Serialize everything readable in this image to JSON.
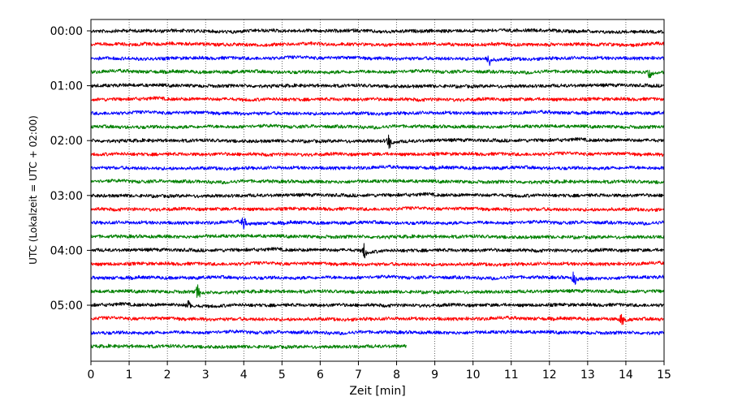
{
  "chart_data": {
    "type": "line",
    "title": "",
    "xlabel": "Zeit  [min]",
    "ylabel": "UTC (Lokalzeit = UTC + 02:00)",
    "xlim": [
      0,
      15
    ],
    "x_ticks": [
      0,
      1,
      2,
      3,
      4,
      5,
      6,
      7,
      8,
      9,
      10,
      11,
      12,
      13,
      14,
      15
    ],
    "x_tick_labels": [
      "0",
      "1",
      "2",
      "3",
      "4",
      "5",
      "6",
      "7",
      "8",
      "9",
      "10",
      "11",
      "12",
      "13",
      "14",
      "15"
    ],
    "y_tick_labels": [
      "00:00",
      "01:00",
      "02:00",
      "03:00",
      "04:00",
      "05:00"
    ],
    "traces_per_hour": 4,
    "trace_count": 24,
    "minutes_per_trace": 15,
    "trace_colors": [
      "#000000",
      "#ff0000",
      "#0000ff",
      "#008000"
    ],
    "last_trace_end_min": 8.25,
    "vertical_grid": "dotted",
    "legend": "none",
    "events": [
      {
        "trace": 2,
        "minute": 10.4
      },
      {
        "trace": 3,
        "minute": 14.6
      },
      {
        "trace": 8,
        "minute": 7.8
      },
      {
        "trace": 14,
        "minute": 4.0
      },
      {
        "trace": 16,
        "minute": 7.15
      },
      {
        "trace": 18,
        "minute": 12.65
      },
      {
        "trace": 19,
        "minute": 2.8
      },
      {
        "trace": 20,
        "minute": 2.55
      },
      {
        "trace": 21,
        "minute": 13.9
      }
    ]
  }
}
